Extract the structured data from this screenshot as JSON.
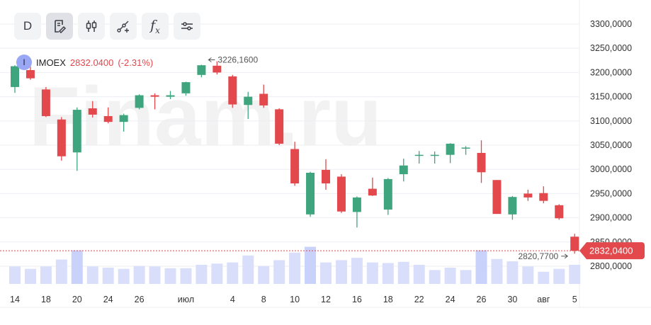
{
  "toolbar": {
    "period_label": "D",
    "fx_label": "f",
    "fx_sub": "x"
  },
  "ticker": {
    "avatar_letter": "I",
    "symbol": "IMOEX",
    "price": "2832.0400",
    "change": "(-2.31%)"
  },
  "watermark": "Finam.ru",
  "colors": {
    "up": "#3fa57e",
    "down": "#e2484c",
    "volume": "#d9dffb",
    "volume_highlight": "#c9d2fa",
    "last_price_line": "#e2484c",
    "grid": "#eceef2",
    "axis_text": "#333333"
  },
  "chart_data": {
    "type": "candlestick",
    "y_axis_labels": [
      "3300,0000",
      "3250,0000",
      "3200,0000",
      "3150,0000",
      "3100,0000",
      "3050,0000",
      "3000,0000",
      "2950,0000",
      "2900,0000",
      "2850,0000",
      "2800,0000"
    ],
    "y_axis_values": [
      3300,
      3250,
      3200,
      3150,
      3100,
      3050,
      3000,
      2950,
      2900,
      2850,
      2800
    ],
    "x_axis_labels": [
      {
        "label": "14",
        "index": 0
      },
      {
        "label": "18",
        "index": 2
      },
      {
        "label": "20",
        "index": 4
      },
      {
        "label": "24",
        "index": 6
      },
      {
        "label": "26",
        "index": 8
      },
      {
        "label": "июл",
        "index": 11
      },
      {
        "label": "4",
        "index": 14
      },
      {
        "label": "8",
        "index": 16
      },
      {
        "label": "10",
        "index": 18
      },
      {
        "label": "12",
        "index": 20
      },
      {
        "label": "16",
        "index": 22
      },
      {
        "label": "18",
        "index": 24
      },
      {
        "label": "22",
        "index": 26
      },
      {
        "label": "24",
        "index": 28
      },
      {
        "label": "26",
        "index": 30
      },
      {
        "label": "30",
        "index": 32
      },
      {
        "label": "авг",
        "index": 34
      },
      {
        "label": "5",
        "index": 36
      }
    ],
    "candles": [
      {
        "o": 3170,
        "h": 3215,
        "l": 3158,
        "c": 3213,
        "v": 0.3
      },
      {
        "o": 3205,
        "h": 3212,
        "l": 3185,
        "c": 3188,
        "v": 0.26
      },
      {
        "o": 3165,
        "h": 3170,
        "l": 3108,
        "c": 3110,
        "v": 0.3
      },
      {
        "o": 3103,
        "h": 3108,
        "l": 3018,
        "c": 3027,
        "v": 0.42
      },
      {
        "o": 3035,
        "h": 3128,
        "l": 2997,
        "c": 3123,
        "v": 0.58
      },
      {
        "o": 3126,
        "h": 3141,
        "l": 3107,
        "c": 3113,
        "v": 0.3
      },
      {
        "o": 3110,
        "h": 3128,
        "l": 3095,
        "c": 3098,
        "v": 0.28
      },
      {
        "o": 3098,
        "h": 3115,
        "l": 3078,
        "c": 3112,
        "v": 0.26
      },
      {
        "o": 3127,
        "h": 3155,
        "l": 3124,
        "c": 3153,
        "v": 0.31
      },
      {
        "o": 3153,
        "h": 3157,
        "l": 3124,
        "c": 3150,
        "v": 0.3
      },
      {
        "o": 3150,
        "h": 3162,
        "l": 3145,
        "c": 3153,
        "v": 0.27
      },
      {
        "o": 3157,
        "h": 3181,
        "l": 3152,
        "c": 3180,
        "v": 0.27
      },
      {
        "o": 3195,
        "h": 3216,
        "l": 3190,
        "c": 3215,
        "v": 0.33
      },
      {
        "o": 3214,
        "h": 3223,
        "l": 3196,
        "c": 3200,
        "v": 0.35
      },
      {
        "o": 3192,
        "h": 3195,
        "l": 3127,
        "c": 3134,
        "v": 0.37
      },
      {
        "o": 3133,
        "h": 3160,
        "l": 3104,
        "c": 3150,
        "v": 0.49
      },
      {
        "o": 3156,
        "h": 3175,
        "l": 3127,
        "c": 3132,
        "v": 0.31
      },
      {
        "o": 3124,
        "h": 3126,
        "l": 3050,
        "c": 3053,
        "v": 0.41
      },
      {
        "o": 3042,
        "h": 3057,
        "l": 2966,
        "c": 2971,
        "v": 0.54
      },
      {
        "o": 2907,
        "h": 2995,
        "l": 2902,
        "c": 2993,
        "v": 0.64
      },
      {
        "o": 2999,
        "h": 3021,
        "l": 2958,
        "c": 2971,
        "v": 0.37
      },
      {
        "o": 2985,
        "h": 2990,
        "l": 2910,
        "c": 2913,
        "v": 0.41
      },
      {
        "o": 2912,
        "h": 2944,
        "l": 2880,
        "c": 2942,
        "v": 0.45
      },
      {
        "o": 2960,
        "h": 2983,
        "l": 2945,
        "c": 2946,
        "v": 0.37
      },
      {
        "o": 2917,
        "h": 2982,
        "l": 2906,
        "c": 2980,
        "v": 0.36
      },
      {
        "o": 2990,
        "h": 3022,
        "l": 2975,
        "c": 3008,
        "v": 0.38
      },
      {
        "o": 3028,
        "h": 3038,
        "l": 3012,
        "c": 3030,
        "v": 0.33
      },
      {
        "o": 3030,
        "h": 3037,
        "l": 3012,
        "c": 3030,
        "v": 0.24
      },
      {
        "o": 3030,
        "h": 3054,
        "l": 3013,
        "c": 3053,
        "v": 0.28
      },
      {
        "o": 3045,
        "h": 3048,
        "l": 3030,
        "c": 3045,
        "v": 0.24
      },
      {
        "o": 3034,
        "h": 3060,
        "l": 2972,
        "c": 2994,
        "v": 0.58
      },
      {
        "o": 2978,
        "h": 2978,
        "l": 2908,
        "c": 2908,
        "v": 0.43
      },
      {
        "o": 2907,
        "h": 2945,
        "l": 2896,
        "c": 2943,
        "v": 0.39
      },
      {
        "o": 2950,
        "h": 2958,
        "l": 2935,
        "c": 2942,
        "v": 0.3
      },
      {
        "o": 2951,
        "h": 2965,
        "l": 2930,
        "c": 2935,
        "v": 0.21
      },
      {
        "o": 2926,
        "h": 2928,
        "l": 2896,
        "c": 2899,
        "v": 0.26
      },
      {
        "o": 2861,
        "h": 2867,
        "l": 2826,
        "c": 2832,
        "v": 0.33
      }
    ],
    "last_price": 2832.04,
    "last_price_label": "2832,0400",
    "max_marker": {
      "value": 3226.16,
      "label": "3226,1600",
      "index": 12
    },
    "min_marker": {
      "value": 2820.77,
      "label": "2820,7700",
      "index": 36
    },
    "ylim": [
      2780,
      3320
    ],
    "grid": true
  }
}
